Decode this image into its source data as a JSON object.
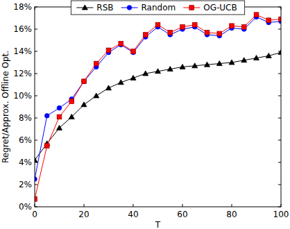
{
  "chart_data": {
    "type": "line",
    "x_label": "T",
    "y_label": "Regret/Approx. Offline Opt.",
    "x": [
      0,
      5,
      10,
      15,
      20,
      25,
      30,
      35,
      40,
      45,
      50,
      55,
      60,
      65,
      70,
      75,
      80,
      85,
      90,
      95,
      100
    ],
    "series": [
      {
        "name": "RSB",
        "color": "#000000",
        "marker": "triangle",
        "line_style": "solid",
        "values": [
          4.2,
          5.7,
          7.1,
          8.1,
          9.2,
          10.0,
          10.7,
          11.2,
          11.6,
          12.0,
          12.2,
          12.4,
          12.6,
          12.7,
          12.8,
          12.9,
          13.0,
          13.2,
          13.4,
          13.6,
          13.9
        ]
      },
      {
        "name": "Random",
        "color": "#0000ff",
        "marker": "circle",
        "line_style": "solid",
        "values": [
          2.5,
          8.2,
          8.9,
          9.7,
          11.3,
          12.6,
          13.9,
          14.6,
          13.9,
          15.3,
          16.2,
          15.5,
          16.0,
          16.2,
          15.5,
          15.4,
          16.1,
          16.0,
          17.1,
          16.6,
          16.7
        ]
      },
      {
        "name": "OG-UCB",
        "color": "#ff0000",
        "marker": "square",
        "line_style": "solid",
        "values": [
          0.7,
          5.5,
          8.1,
          9.5,
          11.3,
          12.9,
          14.1,
          14.7,
          14.0,
          15.5,
          16.4,
          15.7,
          16.2,
          16.4,
          15.7,
          15.6,
          16.3,
          16.2,
          17.3,
          16.8,
          16.9
        ]
      }
    ],
    "xlim": [
      0,
      100
    ],
    "xticks": [
      0,
      20,
      40,
      60,
      80,
      100
    ],
    "ylim": [
      0,
      18
    ],
    "yticks": [
      {
        "value": 0,
        "label": "0%"
      },
      {
        "value": 2,
        "label": "2%"
      },
      {
        "value": 4,
        "label": "4%"
      },
      {
        "value": 6,
        "label": "6%"
      },
      {
        "value": 8,
        "label": "8%"
      },
      {
        "value": 10,
        "label": "10%"
      },
      {
        "value": 12,
        "label": "12%"
      },
      {
        "value": 14,
        "label": "14%"
      },
      {
        "value": 16,
        "label": "16%"
      },
      {
        "value": 18,
        "label": "18%"
      }
    ],
    "legend": "upper center",
    "grid": false
  }
}
